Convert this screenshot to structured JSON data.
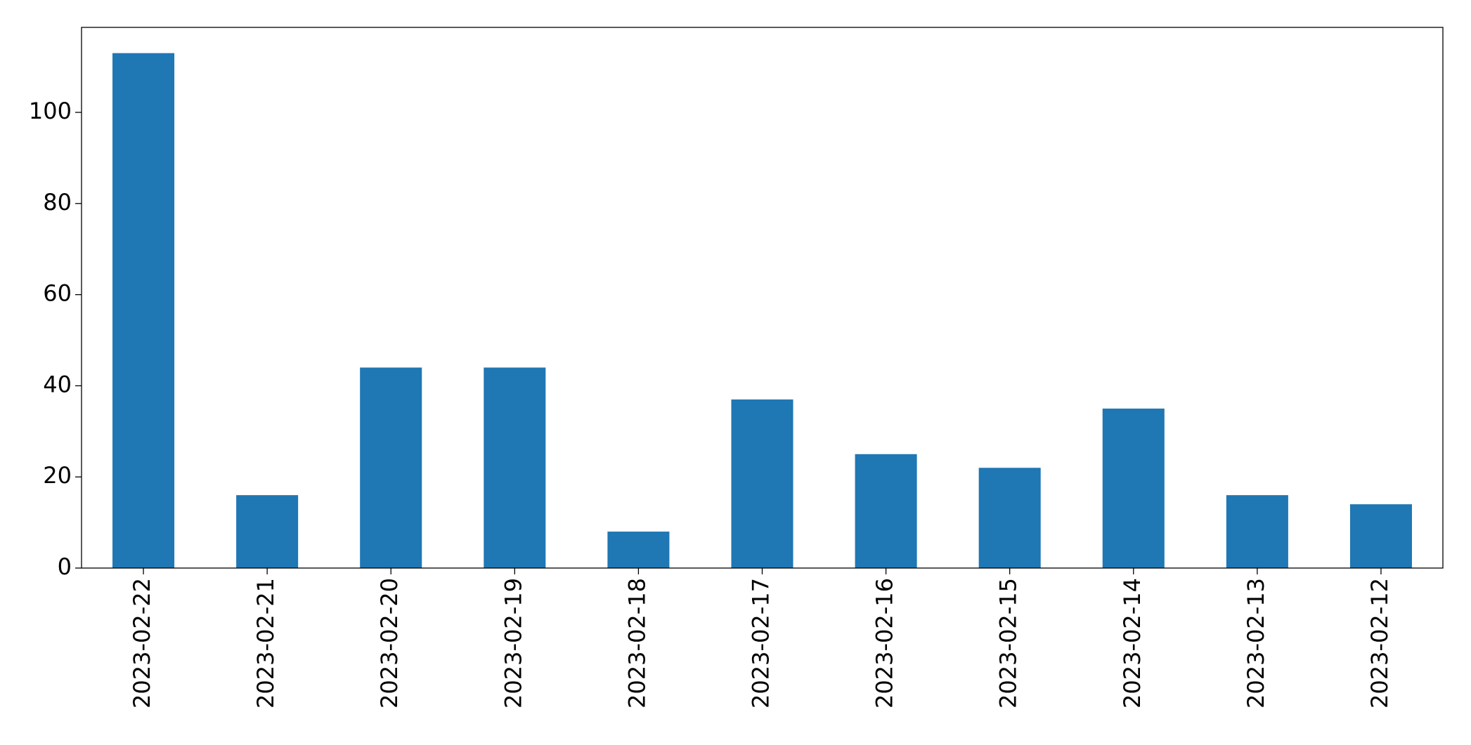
{
  "chart_data": {
    "type": "bar",
    "categories": [
      "2023-02-22",
      "2023-02-21",
      "2023-02-20",
      "2023-02-19",
      "2023-02-18",
      "2023-02-17",
      "2023-02-16",
      "2023-02-15",
      "2023-02-14",
      "2023-02-13",
      "2023-02-12"
    ],
    "values": [
      113,
      16,
      44,
      44,
      8,
      37,
      25,
      22,
      35,
      16,
      14
    ],
    "color": "#1f77b4",
    "ylim": [
      0,
      118.65
    ],
    "yticks": [
      0,
      20,
      40,
      60,
      80,
      100
    ],
    "grid": false
  }
}
